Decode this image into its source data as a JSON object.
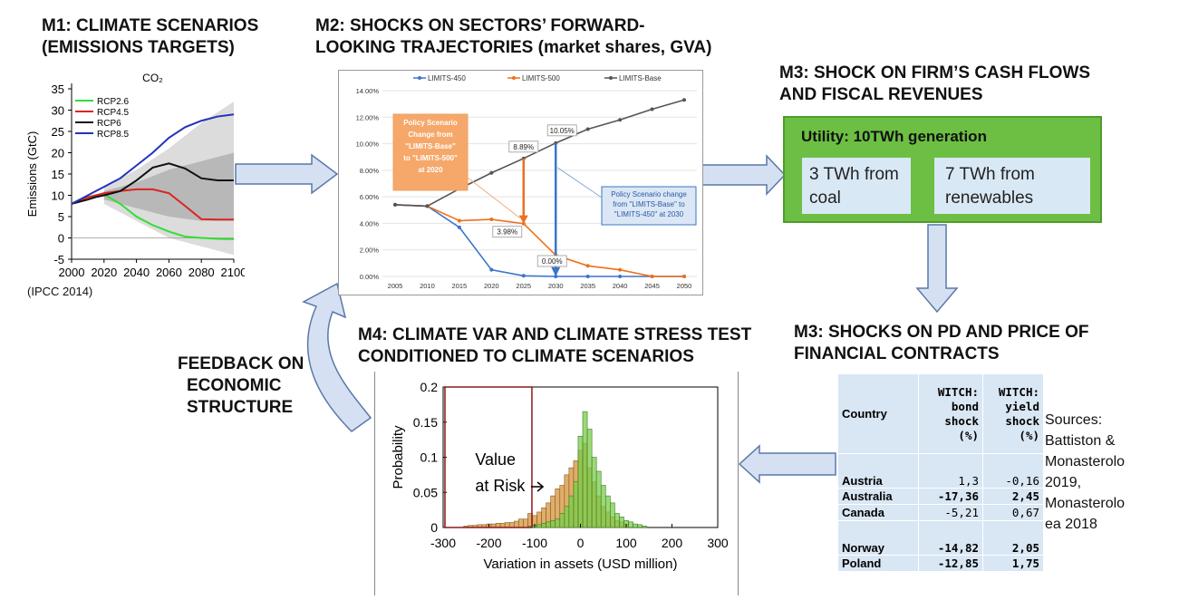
{
  "headers": {
    "m1": [
      "M1: CLIMATE SCENARIOS",
      "(EMISSIONS TARGETS)"
    ],
    "m2": [
      "M2: SHOCKS ON SECTORS’ FORWARD-",
      "LOOKING TRAJECTORIES (market shares, GVA)"
    ],
    "m3a": [
      "M3: SHOCK ON FIRM’S CASH FLOWS",
      "AND FISCAL REVENUES"
    ],
    "m3b": [
      "M3: SHOCKS ON PD AND PRICE OF",
      "FINANCIAL CONTRACTS"
    ],
    "m4": [
      "M4: CLIMATE VAR AND CLIMATE STRESS TEST",
      "CONDITIONED TO CLIMATE SCENARIOS"
    ],
    "feedback": [
      "FEEDBACK ON",
      "ECONOMIC",
      "STRUCTURE"
    ]
  },
  "m1_chart": {
    "title": "CO₂",
    "ylabel": "Emissions (GtC)",
    "source": "(IPCC 2014)"
  },
  "utility": {
    "title": "Utility: 10TWh generation",
    "coal": "3 TWh from coal",
    "renewables": "7 TWh from renewables"
  },
  "table": {
    "headers": [
      "Country",
      "WITCH: bond shock (%)",
      "WITCH: yield shock (%)"
    ],
    "rows": [
      {
        "country": "Austria",
        "bond": "1,3",
        "yield": "-0,16",
        "bold": false
      },
      {
        "country": "Australia",
        "bond": "-17,36",
        "yield": "2,45",
        "bold": true
      },
      {
        "country": "Canada",
        "bond": "-5,21",
        "yield": "0,67",
        "bold": false
      },
      {
        "country": "Norway",
        "bond": "-14,82",
        "yield": "2,05",
        "bold": true
      },
      {
        "country": "Poland",
        "bond": "-12,85",
        "yield": "1,75",
        "bold": true
      }
    ]
  },
  "sources_text": [
    "Sources:",
    "Battiston &",
    "Monasterolo",
    "2019,",
    "Monasterolo",
    "ea 2018"
  ],
  "m4_chart": {
    "annotation": [
      "Value",
      "at Risk"
    ]
  },
  "chart_data": [
    {
      "id": "m1",
      "type": "line",
      "title": "CO₂",
      "xlabel": "",
      "ylabel": "Emissions (GtC)",
      "xlim": [
        2000,
        2100
      ],
      "ylim": [
        -5,
        35
      ],
      "xticks": [
        2000,
        2020,
        2040,
        2060,
        2080,
        2100
      ],
      "yticks": [
        -5,
        0,
        5,
        10,
        15,
        20,
        25,
        30,
        35
      ],
      "legend": "top-left",
      "series": [
        {
          "name": "RCP2.6",
          "color": "#33dd33",
          "x": [
            2000,
            2005,
            2010,
            2015,
            2020,
            2030,
            2040,
            2050,
            2060,
            2070,
            2080,
            2090,
            2100
          ],
          "y": [
            8,
            9,
            9.6,
            10,
            10.2,
            8,
            5,
            3,
            1.5,
            0.3,
            0,
            -0.2,
            -0.3
          ]
        },
        {
          "name": "RCP4.5",
          "color": "#dd2222",
          "x": [
            2000,
            2005,
            2010,
            2015,
            2020,
            2030,
            2040,
            2050,
            2060,
            2070,
            2080,
            2090,
            2100
          ],
          "y": [
            8,
            8.8,
            9.5,
            10,
            10.5,
            11,
            11.4,
            11.4,
            10.5,
            7.5,
            4.4,
            4.3,
            4.3
          ]
        },
        {
          "name": "RCP6",
          "color": "#111111",
          "x": [
            2000,
            2005,
            2010,
            2015,
            2020,
            2030,
            2040,
            2050,
            2060,
            2070,
            2080,
            2090,
            2100
          ],
          "y": [
            8,
            8.5,
            9,
            9.6,
            10,
            11,
            13.5,
            16.5,
            17.5,
            16.3,
            14,
            13.5,
            13.5
          ]
        },
        {
          "name": "RCP8.5",
          "color": "#2233bb",
          "x": [
            2000,
            2005,
            2010,
            2015,
            2020,
            2030,
            2040,
            2050,
            2060,
            2070,
            2080,
            2090,
            2100
          ],
          "y": [
            8,
            9,
            10,
            11,
            12,
            14,
            17,
            20,
            23.5,
            26,
            27.5,
            28.5,
            29
          ]
        }
      ]
    },
    {
      "id": "m2",
      "type": "line",
      "title": "",
      "xlabel": "",
      "ylabel": "",
      "ylim": [
        0,
        14
      ],
      "yticks": [
        "0.00%",
        "2.00%",
        "4.00%",
        "6.00%",
        "8.00%",
        "10.00%",
        "12.00%",
        "14.00%"
      ],
      "categories": [
        "2005",
        "2010",
        "2015",
        "2020",
        "2025",
        "2030",
        "2035",
        "2040",
        "2045",
        "2050"
      ],
      "legend": "top",
      "series": [
        {
          "name": "LIMITS-450",
          "color": "#3b74c9",
          "values": [
            5.4,
            5.3,
            3.7,
            0.5,
            0.05,
            0,
            0,
            0,
            0,
            0
          ]
        },
        {
          "name": "LIMITS-500",
          "color": "#ef6f1d",
          "values": [
            5.4,
            5.3,
            4.2,
            4.3,
            3.98,
            1.6,
            0.8,
            0.5,
            0,
            0
          ]
        },
        {
          "name": "LIMITS-Base",
          "color": "#555555",
          "values": [
            5.4,
            5.3,
            6.6,
            7.8,
            8.89,
            10.05,
            11.1,
            11.8,
            12.6,
            13.3
          ]
        }
      ],
      "data_labels": [
        "8.89%",
        "10.05%",
        "3.98%",
        "0.00%"
      ],
      "annotations": [
        "Policy Scenario Change from \"LIMITS-Base\" to \"LIMITS-500\" at 2020",
        "Policy Scenario change from \"LIMITS-Base\" to \"LIMITS-450\" at 2030"
      ]
    },
    {
      "id": "m4",
      "type": "bar",
      "title": "",
      "xlabel": "Variation in assets (USD million)",
      "ylabel": "Probability",
      "xlim": [
        -300,
        300
      ],
      "ylim": [
        0,
        0.2
      ],
      "xticks": [
        -300,
        -200,
        -100,
        0,
        100,
        200,
        300
      ],
      "yticks": [
        0,
        0.05,
        0.1,
        0.15,
        0.2
      ],
      "bin_width": 10,
      "series": [
        {
          "name": "",
          "color": "#d9a050",
          "x": [
            -250,
            -240,
            -230,
            -220,
            -210,
            -200,
            -190,
            -180,
            -170,
            -160,
            -150,
            -140,
            -130,
            -120,
            -110,
            -100,
            -90,
            -80,
            -70,
            -60,
            -50,
            -40,
            -30,
            -20,
            -10,
            0,
            10,
            20,
            30,
            40,
            50,
            60,
            70,
            80,
            90,
            100
          ],
          "values": [
            0.002,
            0.003,
            0.003,
            0.004,
            0.004,
            0.005,
            0.005,
            0.006,
            0.006,
            0.007,
            0.007,
            0.009,
            0.012,
            0.012,
            0.02,
            0.017,
            0.022,
            0.028,
            0.035,
            0.045,
            0.055,
            0.06,
            0.075,
            0.085,
            0.095,
            0.11,
            0.12,
            0.085,
            0.065,
            0.045,
            0.03,
            0.022,
            0.015,
            0.01,
            0.008,
            0.005
          ]
        },
        {
          "name": "",
          "color": "#7acc4a",
          "x": [
            -110,
            -100,
            -90,
            -80,
            -70,
            -60,
            -50,
            -40,
            -30,
            -20,
            -10,
            0,
            10,
            20,
            30,
            40,
            50,
            60,
            70,
            80,
            90,
            100,
            110,
            120,
            130,
            140
          ],
          "values": [
            0.002,
            0.003,
            0.004,
            0.006,
            0.008,
            0.01,
            0.012,
            0.02,
            0.03,
            0.045,
            0.065,
            0.13,
            0.165,
            0.14,
            0.1,
            0.08,
            0.06,
            0.045,
            0.035,
            0.02,
            0.015,
            0.01,
            0.008,
            0.005,
            0.004,
            0.002
          ]
        }
      ]
    }
  ]
}
